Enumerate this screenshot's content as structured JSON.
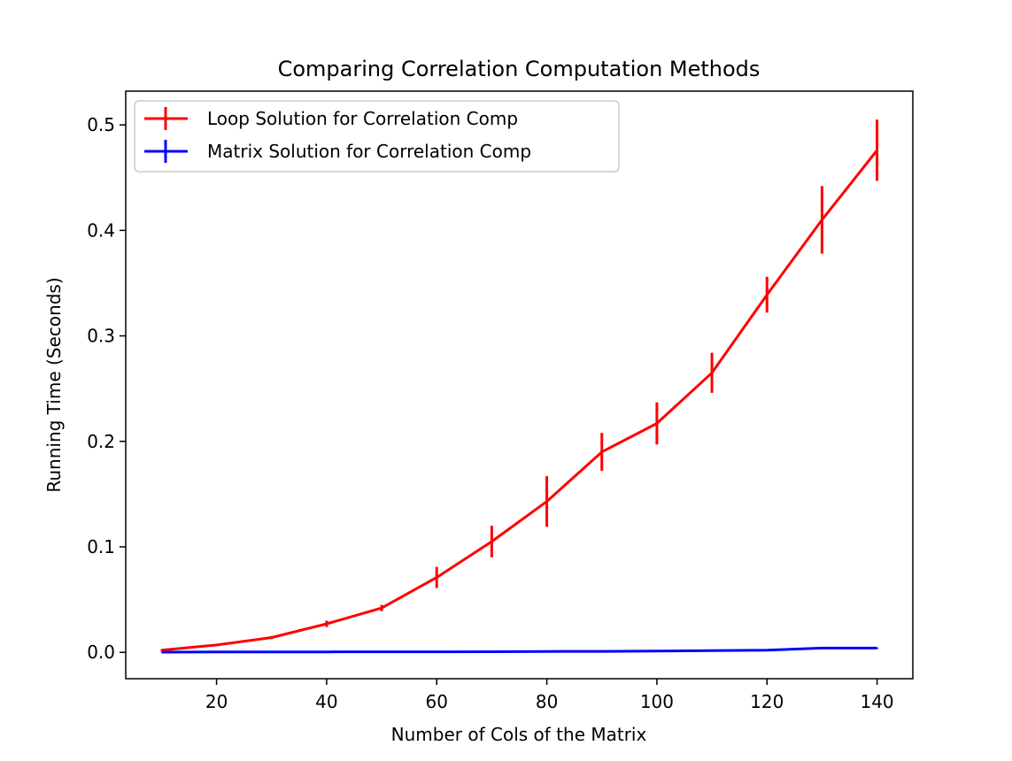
{
  "chart_data": {
    "type": "line",
    "title": "Comparing Correlation Computation Methods",
    "xlabel": "Number of Cols of the Matrix",
    "ylabel": "Running Time (Seconds)",
    "xlim": [
      3.5,
      146.5
    ],
    "ylim": [
      -0.025,
      0.532
    ],
    "xticks": [
      20,
      40,
      60,
      80,
      100,
      120,
      140
    ],
    "yticks": [
      0.0,
      0.1,
      0.2,
      0.3,
      0.4,
      0.5
    ],
    "ytick_labels": [
      "0.0",
      "0.1",
      "0.2",
      "0.3",
      "0.4",
      "0.5"
    ],
    "legend_position": "upper-left",
    "grid": false,
    "x": [
      10,
      20,
      30,
      40,
      50,
      60,
      70,
      80,
      90,
      100,
      110,
      120,
      130,
      140
    ],
    "series": [
      {
        "name": "Loop Solution for Correlation Comp",
        "color": "#ff0000",
        "values": [
          0.002,
          0.007,
          0.014,
          0.027,
          0.042,
          0.071,
          0.105,
          0.143,
          0.19,
          0.217,
          0.265,
          0.339,
          0.41,
          0.476
        ],
        "errors": [
          0.0005,
          0.001,
          0.0015,
          0.003,
          0.003,
          0.01,
          0.015,
          0.024,
          0.018,
          0.02,
          0.019,
          0.017,
          0.032,
          0.029
        ]
      },
      {
        "name": "Matrix Solution for Correlation Comp",
        "color": "#0000ff",
        "values": [
          0.0002,
          0.0003,
          0.0004,
          0.0004,
          0.0005,
          0.0005,
          0.0006,
          0.0008,
          0.0009,
          0.0012,
          0.0016,
          0.002,
          0.004,
          0.004
        ],
        "errors": [
          0.0001,
          0.0001,
          0.0001,
          0.0001,
          0.0001,
          0.0001,
          0.0001,
          0.0001,
          0.0001,
          0.0001,
          0.0002,
          0.0003,
          0.001,
          0.0005
        ]
      }
    ]
  }
}
